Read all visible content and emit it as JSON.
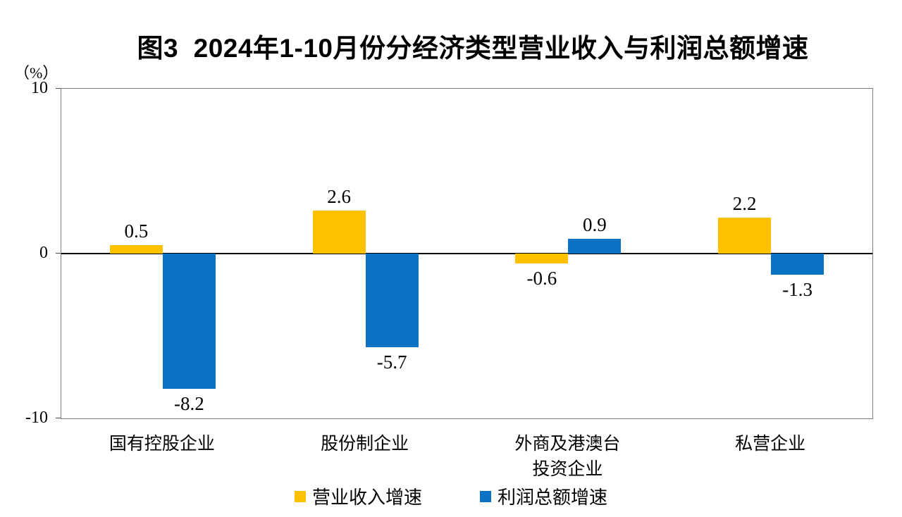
{
  "chart_data": {
    "type": "bar",
    "title": "图3  2024年1-10月份分经济类型营业收入与利润总额增速",
    "unit_label": "（%）",
    "categories": [
      "国有控股企业",
      "股份制企业",
      "外商及港澳台\n投资企业",
      "私营企业"
    ],
    "series": [
      {
        "name": "营业收入增速",
        "color": "#FFC000",
        "values": [
          0.5,
          2.6,
          -0.6,
          2.2
        ]
      },
      {
        "name": "利润总额增速",
        "color": "#0A72C2",
        "values": [
          -8.2,
          -5.7,
          0.9,
          -1.3
        ]
      }
    ],
    "ylim": [
      -10,
      10
    ],
    "yticks": [
      {
        "label": "10",
        "value": 10
      },
      {
        "label": "0",
        "value": 0
      },
      {
        "label": "-10",
        "value": -10
      }
    ],
    "grid": "off",
    "legend_position": "bottom",
    "value_label_decimals": 1
  },
  "colors": {
    "plot_border": "#7f7f7f",
    "zero_line": "#000000",
    "text": "#000000",
    "background": "#ffffff"
  }
}
